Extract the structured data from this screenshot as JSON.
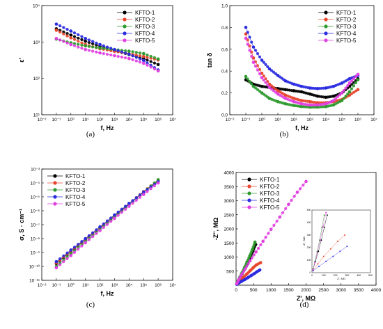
{
  "figure": {
    "panels": [
      {
        "id": "a",
        "label": "(a)"
      },
      {
        "id": "b",
        "label": "(b)"
      },
      {
        "id": "c",
        "label": "(c)"
      },
      {
        "id": "d",
        "label": "(d)"
      }
    ]
  },
  "series_styles": [
    {
      "name": "KFTO-1",
      "color": "#000000"
    },
    {
      "name": "KFTO-2",
      "color": "#e8452c"
    },
    {
      "name": "KFTO-3",
      "color": "#2e9a2e"
    },
    {
      "name": "KFTO-4",
      "color": "#2a2ae0"
    },
    {
      "name": "KFTO-5",
      "color": "#e040e0"
    }
  ],
  "chart_data": [
    {
      "type": "scatter",
      "panel": "a",
      "xlabel": "f, Hz",
      "ylabel": "ε'",
      "x_scale": "log",
      "y_scale": "log",
      "xlim": [
        0.01,
        10000000
      ],
      "ylim": [
        10,
        10000
      ],
      "xticks": [
        {
          "v": 0.01,
          "t": "10⁻²"
        },
        {
          "v": 0.1,
          "t": "10⁻¹"
        },
        {
          "v": 1,
          "t": "10⁰"
        },
        {
          "v": 10,
          "t": "10¹"
        },
        {
          "v": 100,
          "t": "10²"
        },
        {
          "v": 1000,
          "t": "10³"
        },
        {
          "v": 10000,
          "t": "10⁴"
        },
        {
          "v": 100000,
          "t": "10⁵"
        },
        {
          "v": 1000000,
          "t": "10⁶"
        },
        {
          "v": 10000000,
          "t": "10⁷"
        }
      ],
      "yticks": [
        {
          "v": 10,
          "t": "10¹"
        },
        {
          "v": 100,
          "t": "10²"
        },
        {
          "v": 1000,
          "t": "10³"
        },
        {
          "v": 10000,
          "t": "10⁴"
        }
      ],
      "legend_position": "top-right",
      "x": [
        0.1,
        1,
        10,
        100,
        1000,
        10000,
        100000,
        1000000
      ],
      "series": [
        {
          "name": "KFTO-1",
          "values": [
            2300,
            1550,
            1050,
            760,
            580,
            450,
            350,
            240
          ]
        },
        {
          "name": "KFTO-2",
          "values": [
            2100,
            1300,
            850,
            650,
            550,
            480,
            400,
            320
          ]
        },
        {
          "name": "KFTO-3",
          "values": [
            1200,
            950,
            780,
            680,
            620,
            560,
            480,
            340
          ]
        },
        {
          "name": "KFTO-4",
          "values": [
            3100,
            2000,
            1250,
            850,
            620,
            460,
            310,
            170
          ]
        },
        {
          "name": "KFTO-5",
          "values": [
            1250,
            850,
            620,
            500,
            420,
            350,
            260,
            160
          ]
        }
      ]
    },
    {
      "type": "scatter",
      "panel": "b",
      "xlabel": "f, Hz",
      "ylabel": "tan δ",
      "x_scale": "log",
      "y_scale": "linear",
      "xlim": [
        0.01,
        10000000
      ],
      "ylim": [
        0,
        1.0
      ],
      "xticks": [
        {
          "v": 0.01,
          "t": "10⁻²"
        },
        {
          "v": 0.1,
          "t": "10⁻¹"
        },
        {
          "v": 1,
          "t": "10⁰"
        },
        {
          "v": 10,
          "t": "10¹"
        },
        {
          "v": 100,
          "t": "10²"
        },
        {
          "v": 1000,
          "t": "10³"
        },
        {
          "v": 10000,
          "t": "10⁴"
        },
        {
          "v": 100000,
          "t": "10⁵"
        },
        {
          "v": 1000000,
          "t": "10⁶"
        },
        {
          "v": 10000000,
          "t": "10⁷"
        }
      ],
      "yticks": [
        {
          "v": 0.0,
          "t": "0.0"
        },
        {
          "v": 0.2,
          "t": "0.2"
        },
        {
          "v": 0.4,
          "t": "0.4"
        },
        {
          "v": 0.6,
          "t": "0.6"
        },
        {
          "v": 0.8,
          "t": "0.8"
        },
        {
          "v": 1.0,
          "t": "1.0"
        }
      ],
      "legend_position": "top-right",
      "x": [
        0.1,
        0.3,
        1,
        3,
        10,
        30,
        100,
        300,
        1000,
        3000,
        10000,
        30000,
        100000,
        300000,
        1000000
      ],
      "series": [
        {
          "name": "KFTO-1",
          "values": [
            0.32,
            0.28,
            0.26,
            0.25,
            0.24,
            0.23,
            0.22,
            0.21,
            0.19,
            0.17,
            0.16,
            0.17,
            0.2,
            0.26,
            0.33
          ]
        },
        {
          "name": "KFTO-2",
          "values": [
            0.74,
            0.52,
            0.38,
            0.28,
            0.22,
            0.18,
            0.15,
            0.13,
            0.12,
            0.11,
            0.11,
            0.12,
            0.14,
            0.18,
            0.23
          ]
        },
        {
          "name": "KFTO-3",
          "values": [
            0.35,
            0.26,
            0.2,
            0.15,
            0.12,
            0.1,
            0.085,
            0.075,
            0.07,
            0.07,
            0.075,
            0.09,
            0.13,
            0.21,
            0.32
          ]
        },
        {
          "name": "KFTO-4",
          "values": [
            0.8,
            0.62,
            0.5,
            0.42,
            0.36,
            0.31,
            0.28,
            0.26,
            0.245,
            0.24,
            0.245,
            0.26,
            0.29,
            0.33,
            0.36
          ]
        },
        {
          "name": "KFTO-5",
          "values": [
            0.7,
            0.48,
            0.34,
            0.25,
            0.19,
            0.15,
            0.12,
            0.1,
            0.09,
            0.09,
            0.1,
            0.13,
            0.2,
            0.29,
            0.37
          ]
        }
      ]
    },
    {
      "type": "scatter",
      "panel": "c",
      "xlabel": "f, Hz",
      "ylabel": "σ, S · cm⁻¹",
      "x_scale": "log",
      "y_scale": "log",
      "xlim": [
        0.01,
        10000000
      ],
      "ylim": [
        1e-11,
        0.001
      ],
      "xticks": [
        {
          "v": 0.01,
          "t": "10⁻²"
        },
        {
          "v": 0.1,
          "t": "10⁻¹"
        },
        {
          "v": 1,
          "t": "10⁰"
        },
        {
          "v": 10,
          "t": "10¹"
        },
        {
          "v": 100,
          "t": "10²"
        },
        {
          "v": 1000,
          "t": "10³"
        },
        {
          "v": 10000,
          "t": "10⁴"
        },
        {
          "v": 100000,
          "t": "10⁵"
        },
        {
          "v": 1000000,
          "t": "10⁶"
        },
        {
          "v": 10000000,
          "t": "10⁷"
        }
      ],
      "yticks": [
        {
          "v": 1e-11,
          "t": "10⁻¹¹"
        },
        {
          "v": 1e-10,
          "t": "10⁻¹⁰"
        },
        {
          "v": 1e-09,
          "t": "10⁻⁹"
        },
        {
          "v": 1e-08,
          "t": "10⁻⁸"
        },
        {
          "v": 1e-07,
          "t": "10⁻⁷"
        },
        {
          "v": 1e-06,
          "t": "10⁻⁶"
        },
        {
          "v": 1e-05,
          "t": "10⁻⁵"
        },
        {
          "v": 0.0001,
          "t": "10⁻⁴"
        },
        {
          "v": 0.001,
          "t": "10⁻³"
        }
      ],
      "legend_position": "top-left",
      "x": [
        0.1,
        1,
        10,
        100,
        1000,
        10000,
        100000,
        1000000
      ],
      "series": [
        {
          "name": "KFTO-1",
          "values": [
            1.6e-10,
            1.2e-09,
            8.5e-09,
            6e-08,
            4.2e-07,
            3e-06,
            2.1e-05,
            0.00014
          ]
        },
        {
          "name": "KFTO-2",
          "values": [
            1.8e-10,
            1.3e-09,
            9e-09,
            6.3e-08,
            4.5e-07,
            3.2e-06,
            2.4e-05,
            0.00016
          ]
        },
        {
          "name": "KFTO-3",
          "values": [
            1e-10,
            8e-10,
            6e-09,
            4.5e-08,
            3.5e-07,
            2.8e-06,
            2.2e-05,
            0.00017
          ]
        },
        {
          "name": "KFTO-4",
          "values": [
            2.2e-10,
            1.5e-09,
            1e-08,
            7e-08,
            5e-07,
            3.4e-06,
            2.2e-05,
            0.00012
          ]
        },
        {
          "name": "KFTO-5",
          "values": [
            8e-11,
            6e-10,
            5e-09,
            3.8e-08,
            2.8e-07,
            2.1e-06,
            1.5e-05,
            0.0001
          ]
        }
      ]
    },
    {
      "type": "scatter",
      "panel": "d",
      "xlabel": "Z', MΩ",
      "ylabel": "-Z'', MΩ",
      "x_scale": "linear",
      "y_scale": "linear",
      "xlim": [
        0,
        4000
      ],
      "ylim": [
        0,
        4000
      ],
      "xticks": [
        {
          "v": 0,
          "t": "0"
        },
        {
          "v": 500,
          "t": "500"
        },
        {
          "v": 1000,
          "t": "1000"
        },
        {
          "v": 1500,
          "t": "1500"
        },
        {
          "v": 2000,
          "t": "2000"
        },
        {
          "v": 2500,
          "t": "2500"
        },
        {
          "v": 3000,
          "t": "3000"
        },
        {
          "v": 3500,
          "t": "3500"
        },
        {
          "v": 4000,
          "t": "4000"
        }
      ],
      "yticks": [
        {
          "v": 500,
          "t": "500"
        },
        {
          "v": 1000,
          "t": "1000"
        },
        {
          "v": 1500,
          "t": "1500"
        },
        {
          "v": 2000,
          "t": "2000"
        },
        {
          "v": 2500,
          "t": "2500"
        },
        {
          "v": 3000,
          "t": "3000"
        },
        {
          "v": 3500,
          "t": "3500"
        },
        {
          "v": 4000,
          "t": "4000"
        }
      ],
      "legend_position": "top-left",
      "series": [
        {
          "name": "KFTO-1",
          "points": [
            [
              20,
              60
            ],
            [
              60,
              150
            ],
            [
              110,
              260
            ],
            [
              170,
              400
            ],
            [
              240,
              560
            ],
            [
              320,
              750
            ],
            [
              400,
              960
            ],
            [
              480,
              1200
            ],
            [
              560,
              1440
            ]
          ]
        },
        {
          "name": "KFTO-2",
          "points": [
            [
              20,
              40
            ],
            [
              70,
              100
            ],
            [
              140,
              190
            ],
            [
              220,
              290
            ],
            [
              310,
              400
            ],
            [
              400,
              510
            ],
            [
              490,
              620
            ],
            [
              580,
              720
            ],
            [
              700,
              800
            ]
          ]
        },
        {
          "name": "KFTO-3",
          "points": [
            [
              20,
              60
            ],
            [
              60,
              160
            ],
            [
              110,
              290
            ],
            [
              170,
              440
            ],
            [
              240,
              620
            ],
            [
              310,
              820
            ],
            [
              390,
              1040
            ],
            [
              470,
              1280
            ],
            [
              540,
              1530
            ]
          ]
        },
        {
          "name": "KFTO-4",
          "points": [
            [
              20,
              30
            ],
            [
              80,
              80
            ],
            [
              160,
              140
            ],
            [
              250,
              200
            ],
            [
              340,
              270
            ],
            [
              430,
              340
            ],
            [
              520,
              410
            ],
            [
              600,
              480
            ],
            [
              680,
              540
            ]
          ]
        },
        {
          "name": "KFTO-5",
          "points": [
            [
              20,
              50
            ],
            [
              70,
              180
            ],
            [
              150,
              360
            ],
            [
              260,
              580
            ],
            [
              400,
              860
            ],
            [
              570,
              1180
            ],
            [
              770,
              1560
            ],
            [
              1000,
              1980
            ],
            [
              1250,
              2420
            ],
            [
              1500,
              2870
            ],
            [
              1750,
              3300
            ],
            [
              2000,
              3680
            ]
          ]
        }
      ],
      "inset": {
        "xlabel": "Z', MΩ",
        "ylabel": "-Z'', MΩ",
        "xlim": [
          0,
          500
        ],
        "ylim": [
          0,
          500
        ],
        "xticks": [
          {
            "v": 0,
            "t": "0"
          },
          {
            "v": 100,
            "t": "100"
          },
          {
            "v": 200,
            "t": "200"
          },
          {
            "v": 300,
            "t": "300"
          },
          {
            "v": 400,
            "t": "400"
          },
          {
            "v": 500,
            "t": "500"
          }
        ],
        "yticks": [
          {
            "v": 0,
            "t": "0"
          },
          {
            "v": 100,
            "t": "100"
          },
          {
            "v": 200,
            "t": "200"
          },
          {
            "v": 300,
            "t": "300"
          },
          {
            "v": 400,
            "t": "400"
          },
          {
            "v": 500,
            "t": "500"
          }
        ],
        "series": [
          {
            "name": "KFTO-1",
            "points": [
              [
                10,
                30
              ],
              [
                30,
                90
              ],
              [
                55,
                170
              ],
              [
                80,
                260
              ],
              [
                105,
                360
              ],
              [
                130,
                460
              ]
            ]
          },
          {
            "name": "KFTO-2",
            "points": [
              [
                10,
                20
              ],
              [
                50,
                70
              ],
              [
                100,
                130
              ],
              [
                160,
                190
              ],
              [
                220,
                250
              ],
              [
                280,
                300
              ]
            ]
          },
          {
            "name": "KFTO-3",
            "points": [
              [
                10,
                30
              ],
              [
                25,
                90
              ],
              [
                45,
                170
              ],
              [
                65,
                260
              ],
              [
                85,
                360
              ],
              [
                105,
                460
              ]
            ]
          },
          {
            "name": "KFTO-4",
            "points": [
              [
                10,
                15
              ],
              [
                60,
                50
              ],
              [
                120,
                90
              ],
              [
                180,
                130
              ],
              [
                240,
                170
              ],
              [
                300,
                210
              ]
            ]
          },
          {
            "name": "KFTO-5",
            "points": [
              [
                10,
                25
              ],
              [
                25,
                80
              ],
              [
                45,
                160
              ],
              [
                70,
                260
              ],
              [
                95,
                370
              ],
              [
                120,
                480
              ]
            ]
          }
        ]
      }
    }
  ]
}
